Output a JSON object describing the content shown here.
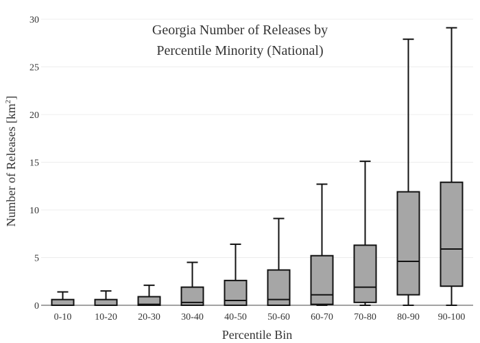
{
  "chart_data": {
    "type": "boxplot",
    "title_lines": [
      "Georgia Number of Releases by",
      "Percentile Minority (National)"
    ],
    "xlabel": "Percentile Bin",
    "ylabel": "Number of Releases  [km",
    "ylabel_sup": "2",
    "ylabel_close": "]",
    "ylim": [
      0,
      30
    ],
    "yticks": [
      0,
      5,
      10,
      15,
      20,
      25,
      30
    ],
    "ytick_labels": [
      "0",
      "5",
      "10",
      "15",
      "20",
      "25",
      "30"
    ],
    "grid": true,
    "legend": "none",
    "box_fill": "#a6a6a6",
    "box_stroke": "#111111",
    "categories": [
      "0-10",
      "10-20",
      "20-30",
      "30-40",
      "40-50",
      "50-60",
      "60-70",
      "70-80",
      "80-90",
      "90-100"
    ],
    "boxes": [
      {
        "min": 0,
        "q1": 0,
        "median": 0,
        "q3": 0.6,
        "max": 1.4
      },
      {
        "min": 0,
        "q1": 0,
        "median": 0,
        "q3": 0.6,
        "max": 1.5
      },
      {
        "min": 0,
        "q1": 0,
        "median": 0.1,
        "q3": 0.9,
        "max": 2.1
      },
      {
        "min": 0,
        "q1": 0,
        "median": 0.3,
        "q3": 1.9,
        "max": 4.5
      },
      {
        "min": 0,
        "q1": 0,
        "median": 0.5,
        "q3": 2.6,
        "max": 6.4
      },
      {
        "min": 0,
        "q1": 0,
        "median": 0.6,
        "q3": 3.7,
        "max": 9.1
      },
      {
        "min": 0,
        "q1": 0.1,
        "median": 1.1,
        "q3": 5.2,
        "max": 12.7
      },
      {
        "min": 0,
        "q1": 0.3,
        "median": 1.9,
        "q3": 6.3,
        "max": 15.1
      },
      {
        "min": 0,
        "q1": 1.1,
        "median": 4.6,
        "q3": 11.9,
        "max": 27.9
      },
      {
        "min": 0,
        "q1": 2.0,
        "median": 5.9,
        "q3": 12.9,
        "max": 29.1
      }
    ]
  }
}
